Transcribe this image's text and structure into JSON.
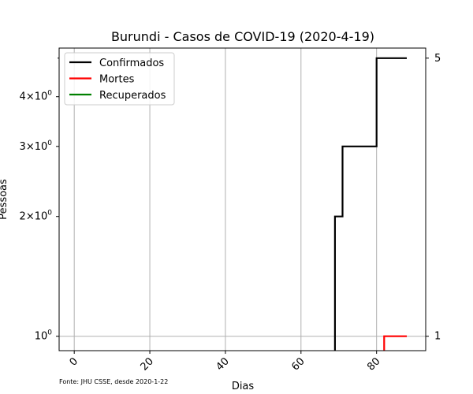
{
  "chart_data": {
    "type": "line",
    "title": "Burundi - Casos de COVID-19 (2020-4-19)",
    "xlabel": "Dias",
    "ylabel": "Pessoas",
    "yscale": "log",
    "xlim": [
      -4,
      93
    ],
    "ylim": [
      0.92,
      5.3
    ],
    "grid": true,
    "legend_position": "top-left",
    "x_ticks": [
      0,
      20,
      40,
      60,
      80
    ],
    "x_tick_labels": [
      "0",
      "20",
      "40",
      "60",
      "80"
    ],
    "y_ticks": [
      1,
      2,
      3,
      4
    ],
    "y_tick_labels": [
      "10",
      "2×10",
      "3×10",
      "4×10"
    ],
    "y_tick_exponent": "0",
    "right_labels": [
      {
        "value": 5,
        "label": "5"
      },
      {
        "value": 1,
        "label": "1"
      }
    ],
    "series": [
      {
        "name": "Confirmados",
        "color": "#000000",
        "x": [
          69,
          69,
          70,
          70,
          71,
          71,
          79,
          79,
          80,
          80,
          88
        ],
        "y": [
          0.9,
          2,
          2,
          2,
          2,
          3,
          3,
          3,
          3,
          5,
          5
        ]
      },
      {
        "name": "Mortes",
        "color": "#ff0000",
        "x": [
          82,
          82,
          88
        ],
        "y": [
          0.9,
          1,
          1
        ]
      },
      {
        "name": "Recuperados",
        "color": "#008000",
        "x": [],
        "y": []
      }
    ],
    "source_note": "Fonte: JHU CSSE, desde 2020-1-22"
  }
}
